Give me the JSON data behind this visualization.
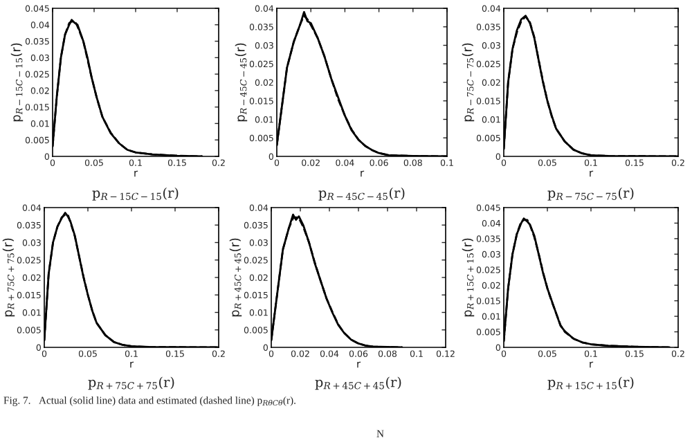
{
  "chart_data": [
    {
      "type": "line",
      "title": "p$_{R−15C−15}$(r)",
      "xlabel": "r",
      "ylabel": "p$_{R−15C−15}$(r)",
      "xlim": [
        0,
        0.2
      ],
      "xticks": [
        0,
        0.05,
        0.1,
        0.15,
        0.2
      ],
      "ylim": [
        0,
        0.045
      ],
      "yticks": [
        0,
        0.005,
        0.01,
        0.015,
        0.02,
        0.025,
        0.03,
        0.035,
        0.04,
        0.045
      ],
      "x": [
        0,
        0.005,
        0.01,
        0.015,
        0.02,
        0.023,
        0.027,
        0.03,
        0.037,
        0.042,
        0.047,
        0.053,
        0.06,
        0.07,
        0.08,
        0.09,
        0.1,
        0.12,
        0.15,
        0.18
      ],
      "series": [
        {
          "color": "#000000",
          "line_style": "solid",
          "values": [
            0.003,
            0.018,
            0.03,
            0.037,
            0.04,
            0.0415,
            0.0405,
            0.04,
            0.035,
            0.03,
            0.024,
            0.018,
            0.012,
            0.007,
            0.004,
            0.002,
            0.0012,
            0.0006,
            0.0002,
            0
          ]
        },
        {
          "color": "#000000",
          "line_style": "dashed",
          "values": [
            0.003,
            0.018,
            0.03,
            0.037,
            0.0405,
            0.041,
            0.041,
            0.0395,
            0.035,
            0.0295,
            0.024,
            0.018,
            0.012,
            0.0072,
            0.004,
            0.002,
            0.0012,
            0.0006,
            0.0002,
            0
          ]
        }
      ]
    },
    {
      "type": "line",
      "title": "p$_{R−45C−45}$(r)",
      "xlabel": "r",
      "ylabel": "p$_{R−45C−45}$(r)",
      "xlim": [
        0,
        0.1
      ],
      "xticks": [
        0,
        0.02,
        0.04,
        0.06,
        0.08,
        0.1
      ],
      "ylim": [
        0,
        0.04
      ],
      "yticks": [
        0,
        0.005,
        0.01,
        0.015,
        0.02,
        0.025,
        0.03,
        0.035,
        0.04
      ],
      "x": [
        0,
        0.004,
        0.006,
        0.01,
        0.014,
        0.016,
        0.018,
        0.02,
        0.024,
        0.028,
        0.032,
        0.036,
        0.04,
        0.044,
        0.048,
        0.052,
        0.056,
        0.06,
        0.066,
        0.08,
        0.1
      ],
      "series": [
        {
          "color": "#000000",
          "line_style": "solid",
          "values": [
            0.003,
            0.017,
            0.024,
            0.031,
            0.036,
            0.039,
            0.0365,
            0.036,
            0.032,
            0.027,
            0.021,
            0.016,
            0.011,
            0.007,
            0.0045,
            0.0028,
            0.0017,
            0.0009,
            0.0003,
            0.0001,
            0
          ]
        },
        {
          "color": "#000000",
          "line_style": "dashed",
          "values": [
            0.003,
            0.017,
            0.024,
            0.031,
            0.036,
            0.038,
            0.037,
            0.0355,
            0.032,
            0.027,
            0.021,
            0.0155,
            0.011,
            0.0072,
            0.0045,
            0.0028,
            0.0017,
            0.0009,
            0.0003,
            0.0001,
            0
          ]
        }
      ]
    },
    {
      "type": "line",
      "title": "p$_{R−75C−75}$(r)",
      "xlabel": "r",
      "ylabel": "p$_{R−75C−75}$(r)",
      "xlim": [
        0,
        0.2
      ],
      "xticks": [
        0,
        0.05,
        0.1,
        0.15,
        0.2
      ],
      "ylim": [
        0,
        0.04
      ],
      "yticks": [
        0,
        0.005,
        0.01,
        0.015,
        0.02,
        0.025,
        0.03,
        0.035,
        0.04
      ],
      "x": [
        0,
        0.005,
        0.01,
        0.015,
        0.02,
        0.025,
        0.03,
        0.035,
        0.04,
        0.045,
        0.05,
        0.055,
        0.06,
        0.07,
        0.08,
        0.09,
        0.1,
        0.12,
        0.2
      ],
      "series": [
        {
          "color": "#000000",
          "line_style": "solid",
          "values": [
            0.002,
            0.02,
            0.029,
            0.034,
            0.037,
            0.038,
            0.036,
            0.032,
            0.026,
            0.02,
            0.015,
            0.011,
            0.0075,
            0.004,
            0.0018,
            0.0008,
            0.0003,
            0.0001,
            0
          ]
        },
        {
          "color": "#000000",
          "line_style": "dashed",
          "values": [
            0.002,
            0.02,
            0.029,
            0.0335,
            0.0365,
            0.0378,
            0.0362,
            0.0322,
            0.026,
            0.0202,
            0.015,
            0.0108,
            0.0075,
            0.004,
            0.0018,
            0.0008,
            0.0003,
            0.0001,
            0
          ]
        }
      ]
    },
    {
      "type": "line",
      "title": "p$_{R+75C+75}$(r)",
      "xlabel": "r",
      "ylabel": "p$_{R+75C+75}$(r)",
      "xlim": [
        0,
        0.2
      ],
      "xticks": [
        0,
        0.05,
        0.1,
        0.15,
        0.2
      ],
      "ylim": [
        0,
        0.04
      ],
      "yticks": [
        0,
        0.005,
        0.01,
        0.015,
        0.02,
        0.025,
        0.03,
        0.035,
        0.04
      ],
      "annotations": [
        "Fig. 7.   Actual (solid line) data and estimated (dashed line) p$_{RθCθ}$(r)."
      ],
      "x": [
        0,
        0.005,
        0.01,
        0.015,
        0.02,
        0.024,
        0.027,
        0.03,
        0.035,
        0.04,
        0.045,
        0.05,
        0.055,
        0.06,
        0.07,
        0.08,
        0.09,
        0.1,
        0.12,
        0.2
      ],
      "series": [
        {
          "color": "#000000",
          "line_style": "solid",
          "values": [
            0.002,
            0.021,
            0.03,
            0.0345,
            0.037,
            0.0385,
            0.0375,
            0.036,
            0.032,
            0.026,
            0.02,
            0.015,
            0.0105,
            0.007,
            0.0035,
            0.0015,
            0.0007,
            0.0003,
            0.0001,
            0
          ]
        },
        {
          "color": "#000000",
          "line_style": "dashed",
          "values": [
            0.002,
            0.021,
            0.03,
            0.0345,
            0.0372,
            0.038,
            0.038,
            0.0358,
            0.0318,
            0.026,
            0.0202,
            0.015,
            0.0105,
            0.007,
            0.0035,
            0.0015,
            0.0007,
            0.0003,
            0.0001,
            0
          ]
        }
      ]
    },
    {
      "type": "line",
      "title": "p$_{R+45C+45}$(r)",
      "xlabel": "r",
      "ylabel": "p$_{R+45C+45}$(r)",
      "xlim": [
        0,
        0.12
      ],
      "xticks": [
        0,
        0.02,
        0.04,
        0.06,
        0.08,
        0.1,
        0.12
      ],
      "ylim": [
        0,
        0.04
      ],
      "yticks": [
        0,
        0.005,
        0.01,
        0.015,
        0.02,
        0.025,
        0.03,
        0.035,
        0.04
      ],
      "annotations": [
        "N"
      ],
      "x": [
        0,
        0.004,
        0.008,
        0.012,
        0.015,
        0.017,
        0.019,
        0.022,
        0.026,
        0.03,
        0.034,
        0.038,
        0.042,
        0.046,
        0.05,
        0.055,
        0.06,
        0.065,
        0.07,
        0.08,
        0.09
      ],
      "series": [
        {
          "color": "#000000",
          "line_style": "solid",
          "values": [
            0.002,
            0.015,
            0.028,
            0.034,
            0.038,
            0.0365,
            0.0375,
            0.035,
            0.03,
            0.024,
            0.019,
            0.014,
            0.01,
            0.0065,
            0.0042,
            0.0022,
            0.0011,
            0.0005,
            0.0002,
            0.0001,
            0
          ]
        },
        {
          "color": "#000000",
          "line_style": "dashed",
          "values": [
            0.002,
            0.015,
            0.028,
            0.034,
            0.037,
            0.0372,
            0.037,
            0.0345,
            0.03,
            0.0242,
            0.019,
            0.014,
            0.0102,
            0.0066,
            0.0042,
            0.0022,
            0.0011,
            0.0005,
            0.0002,
            0.0001,
            0
          ]
        }
      ]
    },
    {
      "type": "line",
      "title": "p$_{R+15C+15}$(r)",
      "xlabel": "r",
      "ylabel": "p$_{R+15C+15}$(r)",
      "xlim": [
        0,
        0.2
      ],
      "xticks": [
        0,
        0.05,
        0.1,
        0.15,
        0.2
      ],
      "ylim": [
        0,
        0.045
      ],
      "yticks": [
        0,
        0.005,
        0.01,
        0.015,
        0.02,
        0.025,
        0.03,
        0.035,
        0.04,
        0.045
      ],
      "x": [
        0,
        0.005,
        0.01,
        0.015,
        0.02,
        0.023,
        0.027,
        0.03,
        0.035,
        0.04,
        0.045,
        0.05,
        0.055,
        0.06,
        0.065,
        0.07,
        0.08,
        0.09,
        0.1,
        0.12,
        0.15,
        0.19
      ],
      "series": [
        {
          "color": "#000000",
          "line_style": "solid",
          "values": [
            0.002,
            0.019,
            0.03,
            0.0365,
            0.04,
            0.0415,
            0.0405,
            0.0395,
            0.036,
            0.03,
            0.024,
            0.019,
            0.015,
            0.011,
            0.007,
            0.0052,
            0.0028,
            0.0016,
            0.001,
            0.0005,
            0.0002,
            0
          ]
        },
        {
          "color": "#000000",
          "line_style": "dashed",
          "values": [
            0.002,
            0.019,
            0.03,
            0.0365,
            0.0405,
            0.041,
            0.041,
            0.0395,
            0.0355,
            0.0302,
            0.0242,
            0.019,
            0.0148,
            0.011,
            0.0072,
            0.005,
            0.0028,
            0.0016,
            0.001,
            0.0005,
            0.0002,
            0
          ]
        }
      ]
    }
  ]
}
